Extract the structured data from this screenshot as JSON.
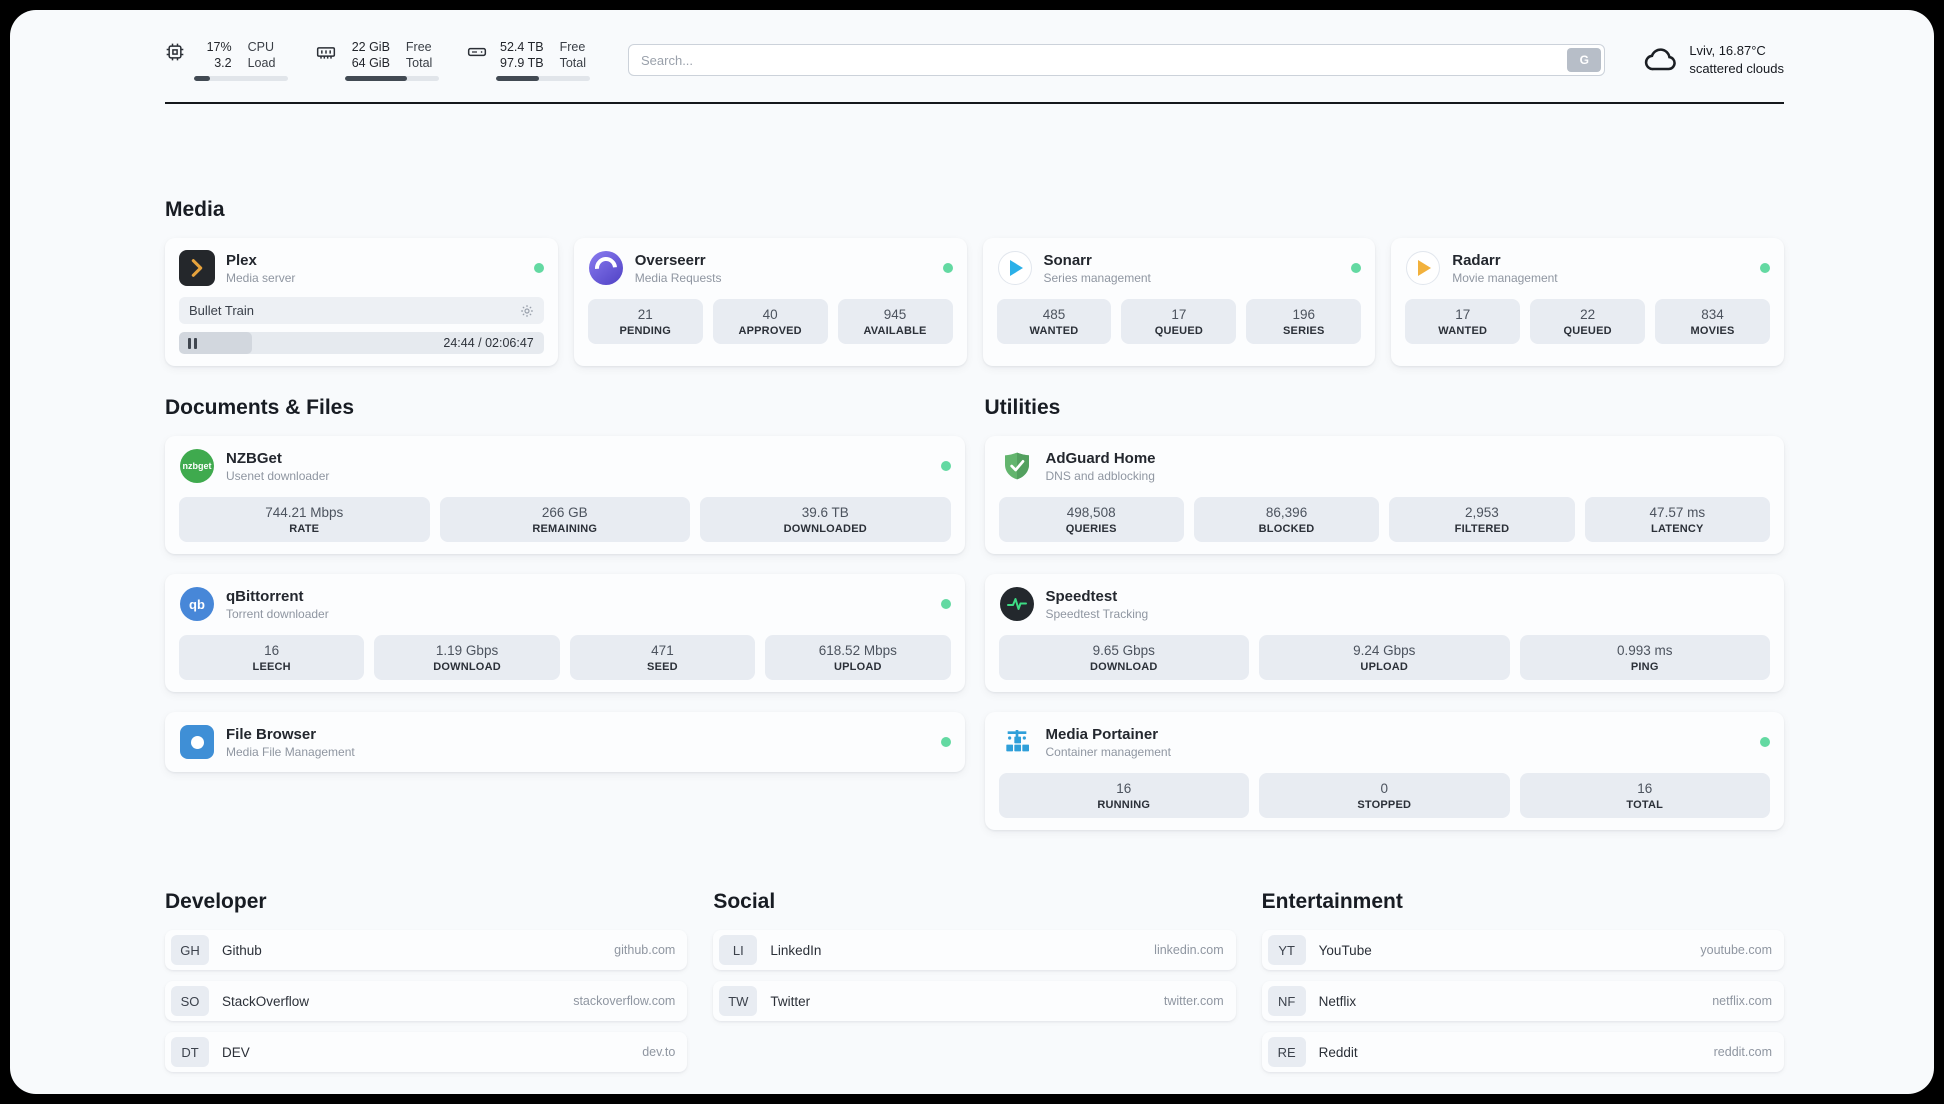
{
  "colors": {
    "online_dot": "#63d9a2",
    "background": "#f8fafc"
  },
  "header": {
    "metrics": [
      {
        "icon": "cpu-icon",
        "value_top": "17%",
        "value_bottom": "3.2",
        "label_top": "CPU",
        "label_bottom": "Load",
        "progress_pct": 17
      },
      {
        "icon": "ram-icon",
        "value_top": "22 GiB",
        "value_bottom": "64 GiB",
        "label_top": "Free",
        "label_bottom": "Total",
        "progress_pct": 66
      },
      {
        "icon": "disk-icon",
        "value_top": "52.4 TB",
        "value_bottom": "97.9 TB",
        "label_top": "Free",
        "label_bottom": "Total",
        "progress_pct": 46
      }
    ],
    "search": {
      "placeholder": "Search...",
      "button_label": "G"
    },
    "weather": {
      "location": "Lviv, 16.87°C",
      "condition": "scattered clouds"
    }
  },
  "media": {
    "title": "Media",
    "plex": {
      "name": "Plex",
      "subtitle": "Media server",
      "online": true,
      "now_playing_title": "Bullet Train",
      "now_playing_time": "24:44 / 02:06:47",
      "progress_pct": 20
    },
    "overseerr": {
      "name": "Overseerr",
      "subtitle": "Media Requests",
      "online": true,
      "stats": [
        {
          "value": "21",
          "label": "PENDING"
        },
        {
          "value": "40",
          "label": "APPROVED"
        },
        {
          "value": "945",
          "label": "AVAILABLE"
        }
      ]
    },
    "sonarr": {
      "name": "Sonarr",
      "subtitle": "Series management",
      "online": true,
      "stats": [
        {
          "value": "485",
          "label": "WANTED"
        },
        {
          "value": "17",
          "label": "QUEUED"
        },
        {
          "value": "196",
          "label": "SERIES"
        }
      ]
    },
    "radarr": {
      "name": "Radarr",
      "subtitle": "Movie management",
      "online": true,
      "stats": [
        {
          "value": "17",
          "label": "WANTED"
        },
        {
          "value": "22",
          "label": "QUEUED"
        },
        {
          "value": "834",
          "label": "MOVIES"
        }
      ]
    }
  },
  "documents": {
    "title": "Documents & Files",
    "nzbget": {
      "name": "NZBGet",
      "subtitle": "Usenet downloader",
      "icon_text": "nzbget",
      "online": true,
      "stats": [
        {
          "value": "744.21 Mbps",
          "label": "RATE"
        },
        {
          "value": "266 GB",
          "label": "REMAINING"
        },
        {
          "value": "39.6 TB",
          "label": "DOWNLOADED"
        }
      ]
    },
    "qbittorrent": {
      "name": "qBittorrent",
      "subtitle": "Torrent downloader",
      "icon_text": "qb",
      "online": true,
      "stats": [
        {
          "value": "16",
          "label": "LEECH"
        },
        {
          "value": "1.19 Gbps",
          "label": "DOWNLOAD"
        },
        {
          "value": "471",
          "label": "SEED"
        },
        {
          "value": "618.52 Mbps",
          "label": "UPLOAD"
        }
      ]
    },
    "filebrowser": {
      "name": "File Browser",
      "subtitle": "Media File Management",
      "online": true
    }
  },
  "utilities": {
    "title": "Utilities",
    "adguard": {
      "name": "AdGuard Home",
      "subtitle": "DNS and adblocking",
      "online": false,
      "stats": [
        {
          "value": "498,508",
          "label": "QUERIES"
        },
        {
          "value": "86,396",
          "label": "BLOCKED"
        },
        {
          "value": "2,953",
          "label": "FILTERED"
        },
        {
          "value": "47.57 ms",
          "label": "LATENCY"
        }
      ]
    },
    "speedtest": {
      "name": "Speedtest",
      "subtitle": "Speedtest Tracking",
      "online": false,
      "stats": [
        {
          "value": "9.65 Gbps",
          "label": "DOWNLOAD"
        },
        {
          "value": "9.24 Gbps",
          "label": "UPLOAD"
        },
        {
          "value": "0.993 ms",
          "label": "PING"
        }
      ]
    },
    "portainer": {
      "name": "Media Portainer",
      "subtitle": "Container management",
      "online": true,
      "stats": [
        {
          "value": "16",
          "label": "RUNNING"
        },
        {
          "value": "0",
          "label": "STOPPED"
        },
        {
          "value": "16",
          "label": "TOTAL"
        }
      ]
    }
  },
  "bookmarks": [
    {
      "title": "Developer",
      "items": [
        {
          "abbr": "GH",
          "name": "Github",
          "url": "github.com"
        },
        {
          "abbr": "SO",
          "name": "StackOverflow",
          "url": "stackoverflow.com"
        },
        {
          "abbr": "DT",
          "name": "DEV",
          "url": "dev.to"
        }
      ]
    },
    {
      "title": "Social",
      "items": [
        {
          "abbr": "LI",
          "name": "LinkedIn",
          "url": "linkedin.com"
        },
        {
          "abbr": "TW",
          "name": "Twitter",
          "url": "twitter.com"
        }
      ]
    },
    {
      "title": "Entertainment",
      "items": [
        {
          "abbr": "YT",
          "name": "YouTube",
          "url": "youtube.com"
        },
        {
          "abbr": "NF",
          "name": "Netflix",
          "url": "netflix.com"
        },
        {
          "abbr": "RE",
          "name": "Reddit",
          "url": "reddit.com"
        }
      ]
    }
  ]
}
